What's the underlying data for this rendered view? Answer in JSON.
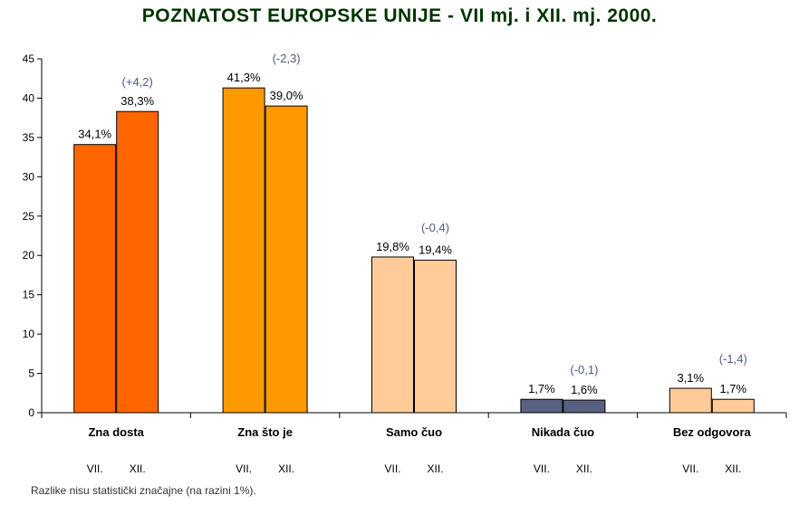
{
  "title": "POZNATOST EUROPSKE UNIJE - VII mj. i XII. mj. 2000.",
  "footnote": "Razlike nisu statistički značajne (na razini 1%).",
  "chart_data": {
    "type": "bar",
    "title": "POZNATOST EUROPSKE UNIJE - VII mj. i XII. mj. 2000.",
    "ylim": [
      0,
      45
    ],
    "yticks": [
      0,
      5,
      10,
      15,
      20,
      25,
      30,
      35,
      40,
      45
    ],
    "grid": false,
    "legend": "none",
    "period_labels": [
      "VII.",
      "XII."
    ],
    "groups": [
      {
        "category": "Zna dosta",
        "values": [
          34.1,
          38.3
        ],
        "labels": [
          "34,1%",
          "38,3%"
        ],
        "diff": "(+4,2)",
        "color": "#FF6600"
      },
      {
        "category": "Zna što je",
        "values": [
          41.3,
          39.0
        ],
        "labels": [
          "41,3%",
          "39,0%"
        ],
        "diff": "(-2,3)",
        "color": "#FF9900"
      },
      {
        "category": "Samo čuo",
        "values": [
          19.8,
          19.4
        ],
        "labels": [
          "19,8%",
          "19,4%"
        ],
        "diff": "(-0,4)",
        "color": "#FFCC99"
      },
      {
        "category": "Nikada čuo",
        "values": [
          1.7,
          1.6
        ],
        "labels": [
          "1,7%",
          "1,6%"
        ],
        "diff": "(-0,1)",
        "color": "#5A6080"
      },
      {
        "category": "Bez odgovora",
        "values": [
          3.1,
          1.7
        ],
        "labels": [
          "3,1%",
          "1,7%"
        ],
        "diff": "(-1,4)",
        "color": "#FFCC99"
      }
    ]
  }
}
